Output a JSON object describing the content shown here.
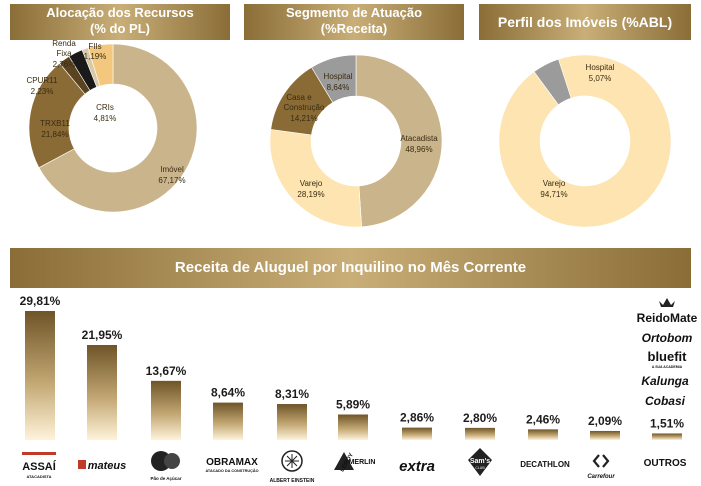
{
  "headers": {
    "alocacao_line1": "Alocação dos Recursos",
    "alocacao_line2": "(% do PL)",
    "segmento_line1": "Segmento de Atuação",
    "segmento_line2": "(%Receita)",
    "perfil": "Perfil dos Imóveis (%ABL)",
    "receita": "Receita de Aluguel por Inquilino no Mês Corrente"
  },
  "colors": {
    "dark_brown": "#8a6a35",
    "tan": "#c9b48c",
    "cream": "#fde4b0",
    "gray": "#9b9b9b",
    "black": "#1a1a1a",
    "gold": "#f3c77e"
  },
  "chart_data": [
    {
      "type": "pie",
      "title": "Alocação dos Recursos (% do PL)",
      "slices": [
        {
          "name": "Imóvel",
          "value": 67.17,
          "label": "67,17%",
          "color": "#c9b48c"
        },
        {
          "name": "TRXB11",
          "value": 21.84,
          "label": "21,84%",
          "color": "#8a6a35"
        },
        {
          "name": "CPUR11",
          "value": 2.23,
          "label": "2,23%",
          "color": "#5a4420"
        },
        {
          "name": "Renda Fixa",
          "value": 2.76,
          "label": "2,76%",
          "color": "#1a1a1a"
        },
        {
          "name": "FIIs",
          "value": 1.19,
          "label": "1,19%",
          "color": "#d8c9a8"
        },
        {
          "name": "CRIs",
          "value": 4.81,
          "label": "4,81%",
          "color": "#f3c77e"
        }
      ]
    },
    {
      "type": "pie",
      "title": "Segmento de Atuação (%Receita)",
      "slices": [
        {
          "name": "Atacadista",
          "value": 48.96,
          "label": "48,96%",
          "color": "#c9b48c"
        },
        {
          "name": "Varejo",
          "value": 28.19,
          "label": "28,19%",
          "color": "#fde4b0"
        },
        {
          "name": "Casa e Construção",
          "value": 14.21,
          "label": "14,21%",
          "color": "#8a6a35"
        },
        {
          "name": "Hospital",
          "value": 8.64,
          "label": "8,64%",
          "color": "#9b9b9b"
        }
      ]
    },
    {
      "type": "pie",
      "title": "Perfil dos Imóveis (%ABL)",
      "slices": [
        {
          "name": "Varejo",
          "value": 94.71,
          "label": "94,71%",
          "color": "#fde4b0"
        },
        {
          "name": "Hospital",
          "value": 5.07,
          "label": "5,07%",
          "color": "#9b9b9b"
        }
      ]
    },
    {
      "type": "bar",
      "title": "Receita de Aluguel por Inquilino no Mês Corrente",
      "categories": [
        "ASSAÍ",
        "Mateus",
        "Pão de Açúcar",
        "OBRAMAX",
        "ALBERT EINSTEIN",
        "LEROY MERLIN",
        "extra",
        "Sam's Club",
        "DECATHLON",
        "Carrefour",
        "OUTROS"
      ],
      "values": [
        29.81,
        21.95,
        13.67,
        8.64,
        8.31,
        5.89,
        2.86,
        2.8,
        2.46,
        2.09,
        1.51
      ],
      "value_labels": [
        "29,81%",
        "21,95%",
        "13,67%",
        "8,64%",
        "8,31%",
        "5,89%",
        "2,86%",
        "2,80%",
        "2,46%",
        "2,09%",
        "1,51%"
      ],
      "ylim": [
        0,
        29.81
      ],
      "grid": false
    }
  ],
  "donut_labels": {
    "d1": {
      "renda": "Renda",
      "fixa": "Fixa",
      "renda_pct": "2,76%",
      "fiis": "FIIs",
      "fiis_pct": "1,19%",
      "cpur": "CPUR11",
      "cpur_pct": "2,23%",
      "trxb": "TRXB11",
      "trxb_pct": "21,84%",
      "cris": "CRIs",
      "cris_pct": "4,81%",
      "imovel": "Imóvel",
      "imovel_pct": "67,17%"
    },
    "d2": {
      "hospital": "Hospital",
      "hospital_pct": "8,64%",
      "casa1": "Casa e",
      "casa2": "Construção",
      "casa_pct": "14,21%",
      "atacadista": "Atacadista",
      "atacadista_pct": "48,96%",
      "varejo": "Varejo",
      "varejo_pct": "28,19%"
    },
    "d3": {
      "hospital": "Hospital",
      "hospital_pct": "5,07%",
      "varejo": "Varejo",
      "varejo_pct": "94,71%"
    }
  },
  "logos": {
    "assai": "ASSAÍ",
    "assai_sub": "ATACADISTA",
    "mateus": "mateus",
    "pao": "Pão de Açúcar",
    "obramax": "OBRAMAX",
    "obramax_sub": "ATACADO DA CONSTRUÇÃO",
    "einstein": "ALBERT EINSTEIN",
    "leroy1": "LEROY",
    "leroy2": "MERLIN",
    "extra": "extra",
    "sams": "Sam's",
    "sams_sub": "CLUB",
    "decathlon": "DECATHLON",
    "carrefour": "Carrefour",
    "outros": "OUTROS",
    "reidomate": "ReidoMate",
    "ortobom": "Ortobom",
    "bluefit": "bluefit",
    "bluefit_sub": "A SUA ACADEMIA",
    "kalunga": "Kalunga",
    "cobasi": "Cobasi"
  }
}
